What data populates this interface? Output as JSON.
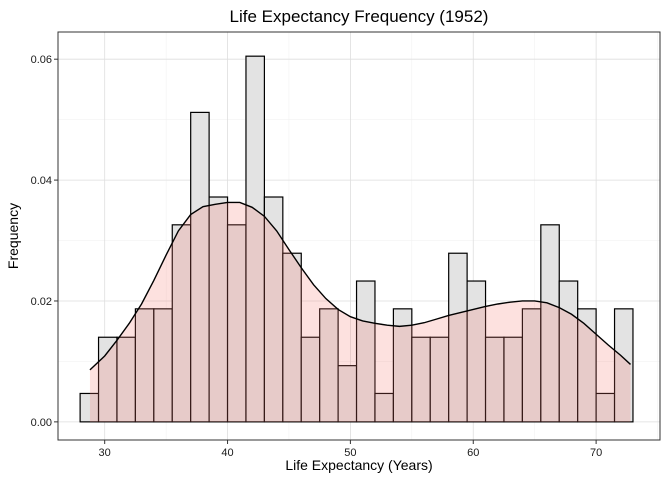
{
  "chart_data": {
    "type": "bar",
    "title": "Life Expectancy Frequency (1952)",
    "xlabel": "Life Expectancy (Years)",
    "ylabel": "Frequency",
    "xlim": [
      26.2,
      75.2
    ],
    "ylim": [
      -0.003,
      0.0645
    ],
    "x_ticks": [
      30,
      40,
      50,
      60,
      70
    ],
    "y_ticks": [
      0.0,
      0.02,
      0.04,
      0.06
    ],
    "y_tick_labels": [
      "0.00",
      "0.02",
      "0.04",
      "0.06"
    ],
    "grid": true,
    "bin_width": 1.5,
    "bins": [
      {
        "x0": 28.0,
        "value": 0.0047
      },
      {
        "x0": 29.5,
        "value": 0.014
      },
      {
        "x0": 31.0,
        "value": 0.014
      },
      {
        "x0": 32.5,
        "value": 0.0187
      },
      {
        "x0": 34.0,
        "value": 0.0187
      },
      {
        "x0": 35.5,
        "value": 0.0326
      },
      {
        "x0": 37.0,
        "value": 0.0512
      },
      {
        "x0": 38.5,
        "value": 0.0372
      },
      {
        "x0": 40.0,
        "value": 0.0326
      },
      {
        "x0": 41.5,
        "value": 0.0605
      },
      {
        "x0": 43.0,
        "value": 0.0372
      },
      {
        "x0": 44.5,
        "value": 0.0279
      },
      {
        "x0": 46.0,
        "value": 0.014
      },
      {
        "x0": 47.5,
        "value": 0.0187
      },
      {
        "x0": 49.0,
        "value": 0.0093
      },
      {
        "x0": 50.5,
        "value": 0.0233
      },
      {
        "x0": 52.0,
        "value": 0.0047
      },
      {
        "x0": 53.5,
        "value": 0.0187
      },
      {
        "x0": 55.0,
        "value": 0.014
      },
      {
        "x0": 56.5,
        "value": 0.014
      },
      {
        "x0": 58.0,
        "value": 0.0279
      },
      {
        "x0": 59.5,
        "value": 0.0233
      },
      {
        "x0": 61.0,
        "value": 0.014
      },
      {
        "x0": 62.5,
        "value": 0.014
      },
      {
        "x0": 64.0,
        "value": 0.0187
      },
      {
        "x0": 65.5,
        "value": 0.0326
      },
      {
        "x0": 67.0,
        "value": 0.0233
      },
      {
        "x0": 68.5,
        "value": 0.0187
      },
      {
        "x0": 70.0,
        "value": 0.0047
      },
      {
        "x0": 71.5,
        "value": 0.0187
      }
    ],
    "density_curve": [
      [
        28.8,
        0.0086
      ],
      [
        30,
        0.0109
      ],
      [
        31,
        0.0135
      ],
      [
        32,
        0.0163
      ],
      [
        33,
        0.0195
      ],
      [
        34,
        0.0234
      ],
      [
        35,
        0.0276
      ],
      [
        36,
        0.0316
      ],
      [
        37,
        0.0343
      ],
      [
        38,
        0.0356
      ],
      [
        39,
        0.036
      ],
      [
        40,
        0.0363
      ],
      [
        41,
        0.0363
      ],
      [
        42,
        0.0355
      ],
      [
        43,
        0.034
      ],
      [
        44,
        0.0316
      ],
      [
        45,
        0.0285
      ],
      [
        46,
        0.0255
      ],
      [
        47,
        0.0227
      ],
      [
        48,
        0.0204
      ],
      [
        49,
        0.0186
      ],
      [
        50,
        0.0174
      ],
      [
        51,
        0.0167
      ],
      [
        52,
        0.0163
      ],
      [
        53,
        0.016
      ],
      [
        54,
        0.0158
      ],
      [
        55,
        0.016
      ],
      [
        56,
        0.0164
      ],
      [
        57,
        0.017
      ],
      [
        58,
        0.0176
      ],
      [
        59,
        0.0181
      ],
      [
        60,
        0.0186
      ],
      [
        61,
        0.0191
      ],
      [
        62,
        0.0195
      ],
      [
        63,
        0.0198
      ],
      [
        64,
        0.02
      ],
      [
        65,
        0.02
      ],
      [
        66,
        0.0197
      ],
      [
        67,
        0.0189
      ],
      [
        68,
        0.0178
      ],
      [
        69,
        0.0163
      ],
      [
        70,
        0.0145
      ],
      [
        71,
        0.0127
      ],
      [
        72,
        0.011
      ],
      [
        72.8,
        0.0095
      ]
    ],
    "colors": {
      "bar_fill": "#e3e3e3",
      "bar_stroke": "#000000",
      "density_fill": "#f8766d",
      "density_line": "#000000"
    }
  }
}
